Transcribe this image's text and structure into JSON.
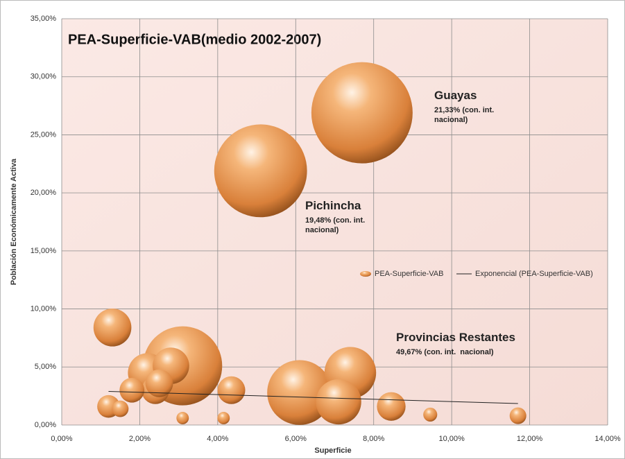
{
  "chart_data": {
    "type": "bubble",
    "title": "PEA-Superficie-VAB(medio 2002-2007)",
    "x_label": "Superficie",
    "y_label": "Población Económicamente Activa",
    "xlim": [
      0,
      14
    ],
    "ylim": [
      0,
      35
    ],
    "xticks": [
      {
        "value": 0,
        "label": "0,00%"
      },
      {
        "value": 2,
        "label": "2,00%"
      },
      {
        "value": 4,
        "label": "4,00%"
      },
      {
        "value": 6,
        "label": "6,00%"
      },
      {
        "value": 8,
        "label": "8,00%"
      },
      {
        "value": 10,
        "label": "10,00%"
      },
      {
        "value": 12,
        "label": "12,00%"
      },
      {
        "value": 14,
        "label": "14,00%"
      }
    ],
    "yticks": [
      {
        "value": 0,
        "label": "0,00%"
      },
      {
        "value": 5,
        "label": "5,00%"
      },
      {
        "value": 10,
        "label": "10,00%"
      },
      {
        "value": 15,
        "label": "15,00%"
      },
      {
        "value": 20,
        "label": "20,00%"
      },
      {
        "value": 25,
        "label": "25,00%"
      },
      {
        "value": 30,
        "label": "30,00%"
      },
      {
        "value": 35,
        "label": "35,00%"
      }
    ],
    "grid": true,
    "series": [
      {
        "name": "PEA-Superficie-VAB",
        "color": "#e8904a",
        "x": [
          7.7,
          5.1,
          1.3,
          3.1,
          2.2,
          2.8,
          2.4,
          2.5,
          1.8,
          1.2,
          1.5,
          3.1,
          4.15,
          4.35,
          6.1,
          7.4,
          7.1,
          8.45,
          9.45,
          11.7
        ],
        "values": [
          26.9,
          21.9,
          8.4,
          5.1,
          4.5,
          5.1,
          3.0,
          3.6,
          3.0,
          1.6,
          1.4,
          0.6,
          0.6,
          3.0,
          2.8,
          4.5,
          2.0,
          1.6,
          0.9,
          0.8
        ],
        "sizes": [
          100,
          84,
          14,
          61,
          15,
          13,
          7.5,
          7.5,
          6,
          5,
          2.7,
          1.5,
          1.5,
          7.5,
          41,
          26,
          20,
          8,
          1.9,
          2.7
        ]
      },
      {
        "name": "Exponencial (PEA-Superficie-VAB)",
        "color": "#222222",
        "x": [
          1.2,
          11.7
        ],
        "values": [
          2.9,
          1.85
        ]
      }
    ],
    "annotations": [
      {
        "title": "Guayas",
        "text": "21,33% (con. int. nacional)"
      },
      {
        "title": "Pichincha",
        "text": "19,48% (con. int. nacional)"
      },
      {
        "title": "Provincias Restantes",
        "text": "49,67% (con. int.  nacional)"
      }
    ]
  }
}
